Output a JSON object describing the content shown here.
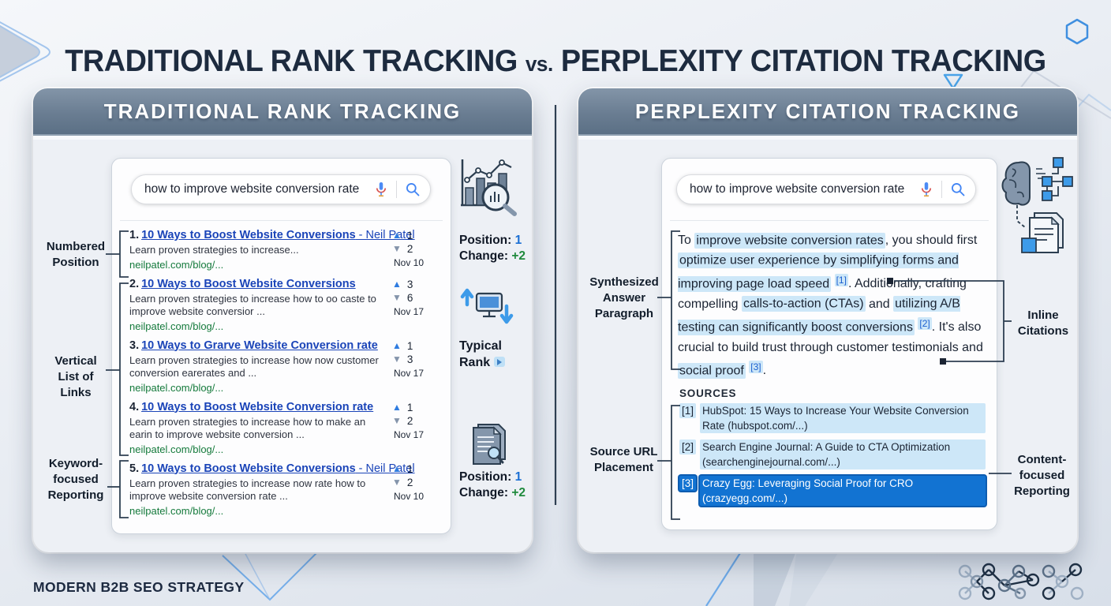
{
  "page": {
    "title_part1": "TRADITIONAL RANK TRACKING ",
    "title_vs": "vs.",
    "title_part2": " PERPLEXITY CITATION TRACKING",
    "footer": "MODERN B2B SEO STRATEGY"
  },
  "colors": {
    "navy": "#1d2b3f",
    "header_slate": "#6a7d92",
    "link_blue": "#1a44b8",
    "url_green": "#157a3c",
    "rank_up_blue": "#2f7ce0",
    "rank_down_slate": "#8494ab",
    "highlight_blue": "#cde7f8",
    "active_source_blue": "#1273d2",
    "position_value_blue": "#1a6fd4",
    "change_value_green": "#1f8a3d"
  },
  "left_panel": {
    "header": "TRADITIONAL RANK TRACKING",
    "search_query": "how to improve website conversion rate",
    "results": [
      {
        "num": "1.",
        "title": "10 Ways to Boost Website Conversions",
        "suffix": " - Neil Patel",
        "desc": "Learn proven strategies to increase...",
        "url": "neilpatel.com/blog/...",
        "up": "1",
        "down": "2",
        "date": "Nov 10"
      },
      {
        "num": "2.",
        "title": "10 Ways to Boost Website Conversions",
        "suffix": "",
        "desc": "Learn proven strategies to increase how to oo caste to improve website conversior ...",
        "url": "neilpatel.com/blog/...",
        "up": "3",
        "down": "6",
        "date": "Nov 17"
      },
      {
        "num": "3.",
        "title": "10 Ways to Grarve Website Conversion rate",
        "suffix": "",
        "desc": "Learn proven strategies to increase how now customer conversion earerates and ...",
        "url": "neilpatel.com/blog/...",
        "up": "1",
        "down": "3",
        "date": "Nov 17"
      },
      {
        "num": "4.",
        "title": "10 Ways to Boost Website Conversion rate",
        "suffix": "",
        "desc": "Learn proven strategies to increase how to make an earin to improve website conversion ...",
        "url": "neilpatel.com/blog/...",
        "up": "1",
        "down": "2",
        "date": "Nov 17"
      },
      {
        "num": "5.",
        "title": "10 Ways to Boost Website Conversions",
        "suffix": " - Neil Patel",
        "desc": "Learn proven strategies to increase now rate how to improve website conversion rate ...",
        "url": "neilpatel.com/blog/...",
        "up": "1",
        "down": "2",
        "date": "Nov 10"
      }
    ],
    "side_labels": [
      "Numbered Position",
      "Vertical List of Links",
      "Keyword-focused Reporting"
    ],
    "rank_snapshot_top": {
      "position_label": "Position:",
      "position_value": "1",
      "change_label": "Change:",
      "change_value": "+2"
    },
    "typical_rank_label": "Typical Rank",
    "rank_snapshot_bottom": {
      "position_label": "Position:",
      "position_value": "1",
      "change_label": "Change:",
      "change_value": "+2"
    }
  },
  "right_panel": {
    "header": "PERPLEXITY CITATION TRACKING",
    "search_query": "how to improve website conversion rate",
    "answer_segments": [
      {
        "text": "To ",
        "type": "plain"
      },
      {
        "text": "improve website conversion rates",
        "type": "hl"
      },
      {
        "text": ", you should first ",
        "type": "plain"
      },
      {
        "text": "optimize user experience by simplifying forms and improving page load speed",
        "type": "hl"
      },
      {
        "text": " ",
        "type": "plain"
      },
      {
        "text": "[1]",
        "type": "cite"
      },
      {
        "text": ". Additionally, crafting compelling ",
        "type": "plain"
      },
      {
        "text": "calls-to-action (CTAs)",
        "type": "hl"
      },
      {
        "text": " and ",
        "type": "plain"
      },
      {
        "text": "utilizing A/B testing can significantly boost conversions",
        "type": "hl"
      },
      {
        "text": " ",
        "type": "plain"
      },
      {
        "text": "[2]",
        "type": "cite"
      },
      {
        "text": ". It's also crucial to build trust through customer testimonials and ",
        "type": "plain"
      },
      {
        "text": "social proof",
        "type": "hl"
      },
      {
        "text": " ",
        "type": "plain"
      },
      {
        "text": "[3]",
        "type": "cite"
      },
      {
        "text": ".",
        "type": "plain"
      }
    ],
    "sources_title": "SOURCES",
    "sources": [
      {
        "ref": "[1]",
        "text": "HubSpot: 15 Ways to Increase Your Website Conversion Rate (hubspot.com/...)",
        "emphasis": "light"
      },
      {
        "ref": "[2]",
        "text": "Search Engine Journal: A Guide to CTA Optimization (searchenginejournal.com/...)",
        "emphasis": "light"
      },
      {
        "ref": "[3]",
        "text": "Crazy Egg: Leveraging Social Proof for CRO (crazyegg.com/...)",
        "emphasis": "dark"
      }
    ],
    "left_labels": [
      "Synthesized Answer Paragraph",
      "Source URL Placement"
    ],
    "right_labels": [
      "Inline Citations",
      "Content-focused Reporting"
    ]
  }
}
